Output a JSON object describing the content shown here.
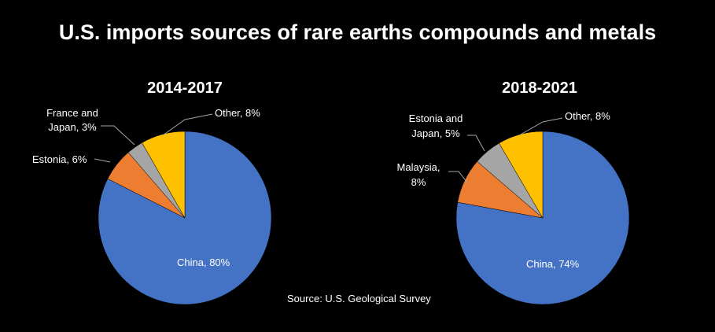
{
  "title": "U.S. imports sources of rare earths compounds and metals",
  "source": "Source: U.S. Geological Survey",
  "colors": {
    "china": "#4472C4",
    "orange": "#ED7D31",
    "gray": "#A5A5A5",
    "yellow": "#FFC000"
  },
  "chart_data": [
    {
      "type": "pie",
      "title": "2014-2017",
      "slices": [
        {
          "label": "China, 80%",
          "value": 80,
          "color": "#4472C4"
        },
        {
          "label": "Estonia, 6%",
          "value": 6,
          "color": "#ED7D31"
        },
        {
          "label": "France and Japan, 3%",
          "value": 3,
          "color": "#A5A5A5"
        },
        {
          "label": "Other, 8%",
          "value": 8,
          "color": "#FFC000"
        }
      ]
    },
    {
      "type": "pie",
      "title": "2018-2021",
      "slices": [
        {
          "label": "China, 74%",
          "value": 74,
          "color": "#4472C4"
        },
        {
          "label": "Malaysia, 8%",
          "value": 8,
          "color": "#ED7D31"
        },
        {
          "label": "Estonia and Japan, 5%",
          "value": 5,
          "color": "#A5A5A5"
        },
        {
          "label": "Other, 8%",
          "value": 8,
          "color": "#FFC000"
        }
      ]
    }
  ]
}
